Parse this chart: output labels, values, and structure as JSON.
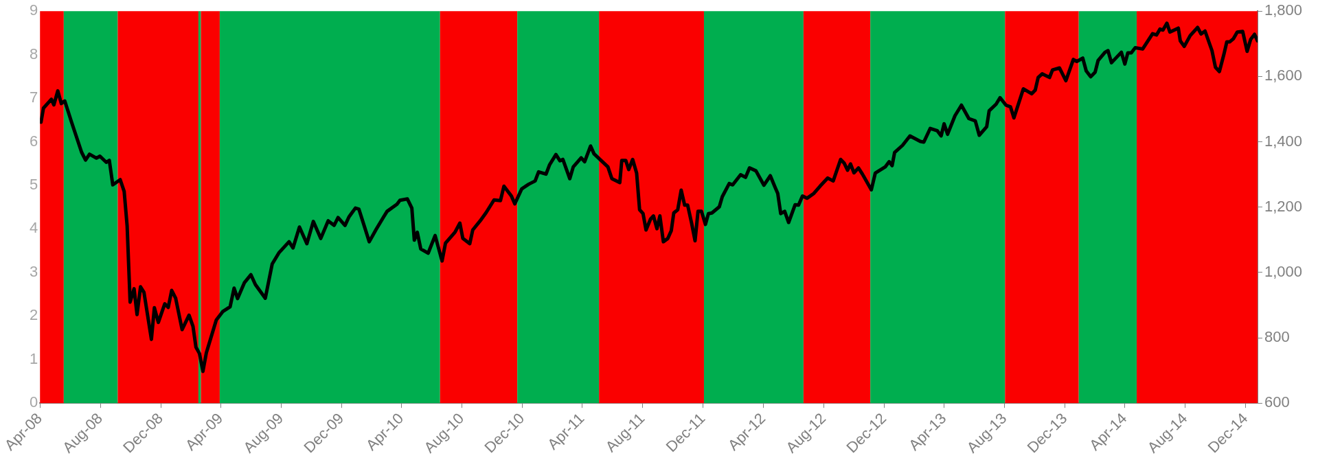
{
  "chart_data": {
    "type": "line",
    "xlim": [
      "2008-04-01",
      "2014-12-25"
    ],
    "xticks": [
      {
        "value": "2008-04-01",
        "label": "Apr-08"
      },
      {
        "value": "2008-08-01",
        "label": "Aug-08"
      },
      {
        "value": "2008-12-01",
        "label": "Dec-08"
      },
      {
        "value": "2009-04-01",
        "label": "Apr-09"
      },
      {
        "value": "2009-08-01",
        "label": "Aug-09"
      },
      {
        "value": "2009-12-01",
        "label": "Dec-09"
      },
      {
        "value": "2010-04-01",
        "label": "Apr-10"
      },
      {
        "value": "2010-08-01",
        "label": "Aug-10"
      },
      {
        "value": "2010-12-01",
        "label": "Dec-10"
      },
      {
        "value": "2011-04-01",
        "label": "Apr-11"
      },
      {
        "value": "2011-08-01",
        "label": "Aug-11"
      },
      {
        "value": "2011-12-01",
        "label": "Dec-11"
      },
      {
        "value": "2012-04-01",
        "label": "Apr-12"
      },
      {
        "value": "2012-08-01",
        "label": "Aug-12"
      },
      {
        "value": "2012-12-01",
        "label": "Dec-12"
      },
      {
        "value": "2013-04-01",
        "label": "Apr-13"
      },
      {
        "value": "2013-08-01",
        "label": "Aug-13"
      },
      {
        "value": "2013-12-01",
        "label": "Dec-13"
      },
      {
        "value": "2014-04-01",
        "label": "Apr-14"
      },
      {
        "value": "2014-08-01",
        "label": "Aug-14"
      },
      {
        "value": "2014-12-01",
        "label": "Dec-14"
      }
    ],
    "ylim": [
      0,
      9
    ],
    "yticks": [
      0,
      1,
      2,
      3,
      4,
      5,
      6,
      7,
      8,
      9
    ],
    "y2lim": [
      600,
      1800
    ],
    "y2ticks": [
      600,
      800,
      {
        "value": 1000,
        "label": "1,000"
      },
      {
        "value": 1200,
        "label": "1,200"
      },
      {
        "value": 1400,
        "label": "1,400"
      },
      {
        "value": 1600,
        "label": "1,600"
      },
      {
        "value": 1800,
        "label": "1,800"
      }
    ],
    "grid": false,
    "legend": false,
    "marker": "none",
    "line_style": "solid",
    "bands": [
      {
        "axis": "x",
        "from": "2008-04-01",
        "to": "2008-05-19",
        "color": "#fa0000"
      },
      {
        "axis": "x",
        "from": "2008-05-19",
        "to": "2008-09-05",
        "color": "#00ae4f"
      },
      {
        "axis": "x",
        "from": "2008-09-05",
        "to": "2009-02-15",
        "color": "#fa0000"
      },
      {
        "axis": "x",
        "from": "2009-02-15",
        "to": "2009-02-20",
        "color": "#00ae4f"
      },
      {
        "axis": "x",
        "from": "2009-02-20",
        "to": "2009-03-30",
        "color": "#fa0000"
      },
      {
        "axis": "x",
        "from": "2009-03-30",
        "to": "2010-06-18",
        "color": "#00ae4f"
      },
      {
        "axis": "x",
        "from": "2010-06-18",
        "to": "2010-11-21",
        "color": "#fa0000"
      },
      {
        "axis": "x",
        "from": "2010-11-21",
        "to": "2011-05-05",
        "color": "#00ae4f"
      },
      {
        "axis": "x",
        "from": "2011-05-05",
        "to": "2011-12-03",
        "color": "#fa0000"
      },
      {
        "axis": "x",
        "from": "2011-12-03",
        "to": "2012-06-21",
        "color": "#00ae4f"
      },
      {
        "axis": "x",
        "from": "2012-06-21",
        "to": "2012-11-03",
        "color": "#fa0000"
      },
      {
        "axis": "x",
        "from": "2012-11-03",
        "to": "2013-08-02",
        "color": "#00ae4f"
      },
      {
        "axis": "x",
        "from": "2013-08-02",
        "to": "2013-12-29",
        "color": "#fa0000"
      },
      {
        "axis": "x",
        "from": "2013-12-29",
        "to": "2014-04-25",
        "color": "#00ae4f"
      },
      {
        "axis": "x",
        "from": "2014-04-25",
        "to": "2014-12-25",
        "color": "#fa0000"
      }
    ],
    "series": [
      {
        "type": "line",
        "axis": "y2",
        "color": "#000000",
        "x": [
          "2008-04-03",
          "2008-04-08",
          "2008-04-24",
          "2008-04-29",
          "2008-05-07",
          "2008-05-14",
          "2008-05-21",
          "2008-06-04",
          "2008-06-24",
          "2008-07-02",
          "2008-07-10",
          "2008-07-24",
          "2008-07-31",
          "2008-08-13",
          "2008-08-19",
          "2008-08-26",
          "2008-09-10",
          "2008-09-18",
          "2008-09-24",
          "2008-09-30",
          "2008-10-08",
          "2008-10-14",
          "2008-10-21",
          "2008-10-28",
          "2008-11-12",
          "2008-11-18",
          "2008-11-26",
          "2008-12-09",
          "2008-12-16",
          "2008-12-23",
          "2008-12-31",
          "2009-01-13",
          "2009-01-27",
          "2009-02-04",
          "2009-02-10",
          "2009-02-17",
          "2009-02-24",
          "2009-03-03",
          "2009-03-23",
          "2009-04-05",
          "2009-04-20",
          "2009-04-28",
          "2009-05-05",
          "2009-05-19",
          "2009-06-01",
          "2009-06-10",
          "2009-06-30",
          "2009-07-14",
          "2009-07-28",
          "2009-08-17",
          "2009-08-25",
          "2009-09-07",
          "2009-09-22",
          "2009-10-05",
          "2009-10-20",
          "2009-11-04",
          "2009-11-16",
          "2009-11-24",
          "2009-12-08",
          "2009-12-16",
          "2009-12-29",
          "2010-01-05",
          "2010-01-26",
          "2010-02-09",
          "2010-02-24",
          "2010-03-03",
          "2010-03-23",
          "2010-03-29",
          "2010-04-13",
          "2010-04-22",
          "2010-04-27",
          "2010-05-03",
          "2010-05-10",
          "2010-05-25",
          "2010-06-08",
          "2010-06-22",
          "2010-06-29",
          "2010-07-18",
          "2010-07-28",
          "2010-08-03",
          "2010-08-17",
          "2010-08-23",
          "2010-09-07",
          "2010-09-19",
          "2010-10-05",
          "2010-10-18",
          "2010-10-25",
          "2010-11-09",
          "2010-11-16",
          "2010-11-30",
          "2010-12-14",
          "2010-12-27",
          "2011-01-03",
          "2011-01-18",
          "2011-01-25",
          "2011-02-07",
          "2011-02-15",
          "2011-02-21",
          "2011-03-07",
          "2011-03-14",
          "2011-03-30",
          "2011-04-06",
          "2011-04-18",
          "2011-04-25",
          "2011-05-12",
          "2011-05-23",
          "2011-05-31",
          "2011-06-16",
          "2011-06-20",
          "2011-06-28",
          "2011-07-04",
          "2011-07-12",
          "2011-07-20",
          "2011-07-26",
          "2011-08-02",
          "2011-08-08",
          "2011-08-17",
          "2011-08-23",
          "2011-08-30",
          "2011-09-05",
          "2011-09-12",
          "2011-09-21",
          "2011-09-28",
          "2011-10-03",
          "2011-10-11",
          "2011-10-18",
          "2011-10-25",
          "2011-10-31",
          "2011-11-08",
          "2011-11-15",
          "2011-11-21",
          "2011-11-28",
          "2011-12-06",
          "2011-12-12",
          "2011-12-19",
          "2012-01-03",
          "2012-01-09",
          "2012-01-23",
          "2012-01-30",
          "2012-02-15",
          "2012-02-25",
          "2012-03-04",
          "2012-03-17",
          "2012-04-02",
          "2012-04-15",
          "2012-04-24",
          "2012-04-30",
          "2012-05-06",
          "2012-05-14",
          "2012-05-22",
          "2012-06-04",
          "2012-06-11",
          "2012-06-19",
          "2012-06-28",
          "2012-07-12",
          "2012-07-25",
          "2012-08-09",
          "2012-08-20",
          "2012-09-04",
          "2012-09-11",
          "2012-09-18",
          "2012-09-24",
          "2012-10-01",
          "2012-10-10",
          "2012-10-18",
          "2012-11-05",
          "2012-11-13",
          "2012-12-03",
          "2012-12-11",
          "2012-12-17",
          "2012-12-22",
          "2013-01-07",
          "2013-01-22",
          "2013-02-12",
          "2013-02-19",
          "2013-03-04",
          "2013-03-18",
          "2013-03-26",
          "2013-04-01",
          "2013-04-08",
          "2013-04-23",
          "2013-05-06",
          "2013-05-21",
          "2013-06-03",
          "2013-06-11",
          "2013-06-26",
          "2013-07-01",
          "2013-07-15",
          "2013-07-23",
          "2013-08-04",
          "2013-08-13",
          "2013-08-20",
          "2013-09-08",
          "2013-09-25",
          "2013-10-02",
          "2013-10-08",
          "2013-10-16",
          "2013-10-31",
          "2013-11-06",
          "2013-11-20",
          "2013-12-03",
          "2013-12-18",
          "2013-12-25",
          "2014-01-06",
          "2014-01-13",
          "2014-01-22",
          "2014-01-31",
          "2014-02-06",
          "2014-02-20",
          "2014-02-26",
          "2014-03-05",
          "2014-03-25",
          "2014-04-01",
          "2014-04-07",
          "2014-04-14",
          "2014-04-22",
          "2014-05-07",
          "2014-05-27",
          "2014-06-04",
          "2014-06-11",
          "2014-06-17",
          "2014-06-25",
          "2014-07-01",
          "2014-07-18",
          "2014-07-22",
          "2014-07-30",
          "2014-08-11",
          "2014-08-26",
          "2014-09-02",
          "2014-09-10",
          "2014-09-24",
          "2014-10-01",
          "2014-10-09",
          "2014-10-18",
          "2014-10-24",
          "2014-10-30",
          "2014-11-06",
          "2014-11-14",
          "2014-11-25",
          "2014-12-04",
          "2014-12-11",
          "2014-12-19",
          "2014-12-25"
        ],
        "values": [
          1460,
          1503,
          1530,
          1513,
          1556,
          1517,
          1525,
          1459,
          1368,
          1344,
          1362,
          1350,
          1356,
          1337,
          1343,
          1268,
          1284,
          1248,
          1142,
          909,
          950,
          871,
          956,
          939,
          795,
          892,
          847,
          904,
          893,
          945,
          921,
          825,
          869,
          835,
          771,
          752,
          697,
          754,
          854,
          880,
          895,
          952,
          920,
          969,
          993,
          963,
          921,
          1026,
          1061,
          1094,
          1075,
          1139,
          1088,
          1156,
          1104,
          1158,
          1144,
          1168,
          1144,
          1170,
          1197,
          1194,
          1094,
          1132,
          1170,
          1187,
          1209,
          1221,
          1225,
          1197,
          1099,
          1123,
          1072,
          1059,
          1113,
          1035,
          1090,
          1123,
          1151,
          1104,
          1088,
          1130,
          1158,
          1183,
          1222,
          1220,
          1264,
          1234,
          1210,
          1256,
          1270,
          1280,
          1308,
          1301,
          1329,
          1361,
          1342,
          1346,
          1287,
          1323,
          1351,
          1339,
          1387,
          1363,
          1339,
          1323,
          1287,
          1275,
          1343,
          1343,
          1315,
          1346,
          1304,
          1192,
          1180,
          1130,
          1163,
          1173,
          1134,
          1173,
          1094,
          1104,
          1128,
          1182,
          1192,
          1252,
          1206,
          1206,
          1151,
          1097,
          1187,
          1187,
          1147,
          1180,
          1182,
          1201,
          1232,
          1272,
          1268,
          1299,
          1291,
          1320,
          1311,
          1267,
          1296,
          1263,
          1242,
          1180,
          1187,
          1153,
          1207,
          1206,
          1234,
          1227,
          1242,
          1265,
          1289,
          1280,
          1346,
          1335,
          1313,
          1332,
          1305,
          1320,
          1301,
          1253,
          1304,
          1323,
          1339,
          1327,
          1367,
          1389,
          1418,
          1401,
          1399,
          1441,
          1434,
          1418,
          1455,
          1423,
          1480,
          1512,
          1471,
          1464,
          1420,
          1446,
          1495,
          1515,
          1535,
          1512,
          1507,
          1473,
          1562,
          1547,
          1558,
          1597,
          1608,
          1597,
          1620,
          1626,
          1587,
          1652,
          1646,
          1656,
          1617,
          1599,
          1613,
          1649,
          1674,
          1679,
          1642,
          1674,
          1638,
          1672,
          1672,
          1688,
          1684,
          1731,
          1727,
          1745,
          1742,
          1763,
          1736,
          1748,
          1709,
          1692,
          1725,
          1750,
          1730,
          1739,
          1679,
          1628,
          1615,
          1667,
          1706,
          1706,
          1715,
          1736,
          1738,
          1677,
          1713,
          1729,
          1709
        ]
      }
    ]
  }
}
